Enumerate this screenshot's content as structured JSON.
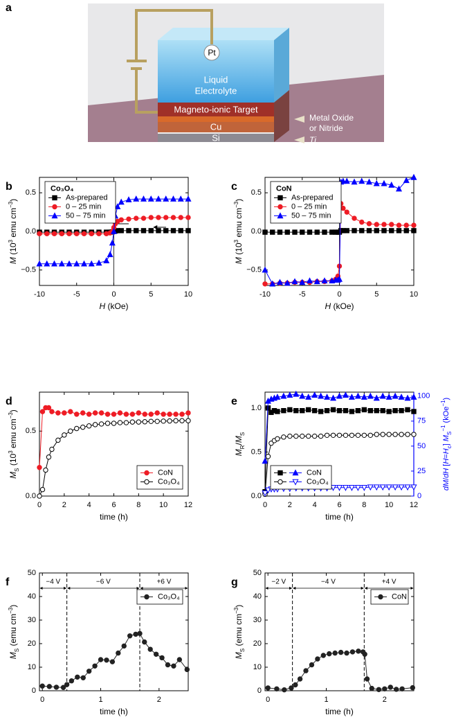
{
  "diagram": {
    "panel": "a",
    "pt": "Pt",
    "electrolyte": [
      "Liquid",
      "Electrolyte"
    ],
    "target": "Magneto-ionic Target",
    "cu": "Cu",
    "si": "Si",
    "oxide": [
      "Metal Oxide",
      "or Nitride"
    ],
    "ti": "Ti"
  },
  "chart_data": [
    {
      "type": "line",
      "panel": "b",
      "legend_title": "Co₃O₄",
      "legend": "upper left",
      "zeroline": true,
      "xlabel": [
        [
          "H",
          "i"
        ],
        [
          " (kOe)"
        ]
      ],
      "ylabel": [
        [
          "M",
          "i"
        ],
        [
          " (10"
        ],
        [
          "3",
          "sup"
        ],
        [
          " emu cm"
        ],
        [
          "−3",
          "sup"
        ],
        [
          ")"
        ]
      ],
      "xlim": [
        -10,
        10
      ],
      "xticks": [
        -10,
        -5,
        0,
        5,
        10
      ],
      "ylim": [
        -0.7,
        0.7
      ],
      "yticks": [
        {
          "value": -0.5,
          "label": "−0.5"
        },
        {
          "value": 0,
          "label": "0.0"
        },
        {
          "value": 0.5,
          "label": "0.5"
        }
      ],
      "x": [
        -10,
        -9,
        -8,
        -7,
        -6,
        -5,
        -4,
        -3,
        -2,
        -1,
        -0.5,
        -0.2,
        0,
        0.2,
        0.5,
        1,
        2,
        3,
        4,
        5,
        6,
        7,
        8,
        9,
        10
      ],
      "series": [
        {
          "name": "As-prepared",
          "color": "#000000",
          "marker": "square",
          "filled": true,
          "values": [
            -0.01,
            -0.01,
            -0.01,
            -0.01,
            -0.01,
            -0.01,
            -0.01,
            -0.01,
            -0.01,
            -0.01,
            -0.01,
            -0.005,
            0,
            0.005,
            0.01,
            0.01,
            0.01,
            0.01,
            0.01,
            0.01,
            0.01,
            0.01,
            0.01,
            0.01,
            0.01
          ]
        },
        {
          "name": "0 – 25 min",
          "color": "#ee1c25",
          "marker": "circle",
          "filled": true,
          "values": [
            -0.03,
            -0.03,
            -0.03,
            -0.03,
            -0.03,
            -0.03,
            -0.03,
            -0.03,
            -0.03,
            -0.03,
            -0.02,
            0,
            0.05,
            0.1,
            0.13,
            0.15,
            0.16,
            0.17,
            0.17,
            0.18,
            0.18,
            0.18,
            0.18,
            0.18,
            0.18
          ]
        },
        {
          "name": "50 – 75 min",
          "color": "#0000ff",
          "marker": "triangle",
          "filled": true,
          "values": [
            -0.42,
            -0.42,
            -0.42,
            -0.42,
            -0.42,
            -0.42,
            -0.42,
            -0.42,
            -0.41,
            -0.38,
            -0.3,
            -0.15,
            0,
            0.2,
            0.32,
            0.38,
            0.41,
            0.42,
            0.42,
            0.42,
            0.42,
            0.42,
            0.42,
            0.42,
            0.42
          ]
        }
      ]
    },
    {
      "type": "line",
      "panel": "c",
      "legend_title": "CoN",
      "legend": "upper left",
      "zeroline": true,
      "xlabel": [
        [
          "H",
          "i"
        ],
        [
          " (kOe)"
        ]
      ],
      "ylabel": [
        [
          "M",
          "i"
        ],
        [
          " (10"
        ],
        [
          "3",
          "sup"
        ],
        [
          " emu cm"
        ],
        [
          "−3",
          "sup"
        ],
        [
          ")"
        ]
      ],
      "xlim": [
        -10,
        10
      ],
      "xticks": [
        -10,
        -5,
        0,
        5,
        10
      ],
      "ylim": [
        -0.7,
        0.7
      ],
      "yticks": [
        {
          "value": -0.5,
          "label": "−0.5"
        },
        {
          "value": 0,
          "label": "0.0"
        },
        {
          "value": 0.5,
          "label": "0.5"
        }
      ],
      "x": [
        -10,
        -9,
        -8,
        -7,
        -6,
        -5,
        -4,
        -3,
        -2,
        -1,
        -0.5,
        -0.2,
        0,
        0.2,
        0.5,
        1,
        2,
        3,
        4,
        5,
        6,
        7,
        8,
        9,
        10
      ],
      "series": [
        {
          "name": "As-prepared",
          "color": "#000000",
          "marker": "square",
          "filled": true,
          "values": [
            -0.01,
            -0.01,
            -0.01,
            -0.01,
            -0.01,
            -0.01,
            -0.01,
            -0.01,
            -0.01,
            -0.01,
            -0.01,
            -0.01,
            -0.01,
            0.01,
            0.01,
            0.01,
            0.01,
            0.01,
            0.01,
            0.01,
            0.01,
            0.01,
            0.01,
            0.01,
            0.01
          ]
        },
        {
          "name": "0 – 25 min",
          "color": "#ee1c25",
          "marker": "circle",
          "filled": true,
          "values": [
            -0.68,
            -0.68,
            -0.67,
            -0.67,
            -0.66,
            -0.66,
            -0.66,
            -0.65,
            -0.65,
            -0.64,
            -0.62,
            -0.58,
            -0.45,
            0.36,
            0.3,
            0.25,
            0.17,
            0.12,
            0.1,
            0.09,
            0.09,
            0.09,
            0.08,
            0.08,
            0.08
          ]
        },
        {
          "name": "50 – 75 min",
          "color": "#0000ff",
          "marker": "triangle",
          "filled": true,
          "values": [
            -0.5,
            -0.68,
            -0.66,
            -0.67,
            -0.65,
            -0.66,
            -0.64,
            -0.65,
            -0.64,
            -0.64,
            -0.63,
            -0.63,
            -0.62,
            0.64,
            0.65,
            0.65,
            0.64,
            0.65,
            0.64,
            0.62,
            0.62,
            0.6,
            0.55,
            0.66,
            0.7
          ]
        }
      ]
    },
    {
      "type": "line",
      "panel": "d",
      "legend": "lower right",
      "xlabel": [
        [
          "time (h)"
        ]
      ],
      "ylabel": [
        [
          "M",
          "i"
        ],
        [
          "S",
          "sub"
        ],
        [
          " (10"
        ],
        [
          "3",
          "sup"
        ],
        [
          " emu cm"
        ],
        [
          "−3",
          "sup"
        ],
        [
          ")"
        ]
      ],
      "xlim": [
        0,
        12
      ],
      "xticks": [
        0,
        2,
        4,
        6,
        8,
        10,
        12
      ],
      "ylim": [
        0,
        0.8
      ],
      "yticks": [
        {
          "value": 0,
          "label": "0.0"
        },
        0.5
      ],
      "x": [
        0,
        0.25,
        0.5,
        0.75,
        1,
        1.5,
        2,
        2.5,
        3,
        3.5,
        4,
        4.5,
        5,
        5.5,
        6,
        6.5,
        7,
        7.5,
        8,
        8.5,
        9,
        9.5,
        10,
        10.5,
        11,
        11.5,
        12
      ],
      "series": [
        {
          "name": "CoN",
          "color": "#ee1c25",
          "marker": "circle",
          "filled": true,
          "values": [
            0.22,
            0.65,
            0.68,
            0.68,
            0.65,
            0.64,
            0.64,
            0.65,
            0.63,
            0.64,
            0.63,
            0.64,
            0.64,
            0.63,
            0.63,
            0.64,
            0.63,
            0.63,
            0.64,
            0.63,
            0.63,
            0.64,
            0.63,
            0.63,
            0.63,
            0.63,
            0.64
          ]
        },
        {
          "name": "Co₃O₄",
          "color": "#000000",
          "marker": "circle",
          "filled": false,
          "values": [
            0,
            0.05,
            0.2,
            0.3,
            0.36,
            0.43,
            0.47,
            0.5,
            0.52,
            0.53,
            0.54,
            0.55,
            0.555,
            0.56,
            0.56,
            0.565,
            0.565,
            0.57,
            0.57,
            0.572,
            0.575,
            0.575,
            0.577,
            0.578,
            0.58,
            0.58,
            0.58
          ]
        }
      ]
    },
    {
      "type": "line",
      "panel": "e",
      "legend": "lower left",
      "xlabel": [
        [
          "time (h)"
        ]
      ],
      "ylabel": [
        [
          "M",
          "i"
        ],
        [
          "R",
          "sub"
        ],
        [
          "/"
        ],
        [
          "M",
          "i"
        ],
        [
          "S",
          "sub"
        ]
      ],
      "y2label": [
        [
          "dM",
          "i"
        ],
        [
          "/"
        ],
        [
          "dH",
          "i"
        ],
        [
          " ["
        ],
        [
          "H",
          "i"
        ],
        [
          "="
        ],
        [
          "H",
          "i"
        ],
        [
          "c",
          "sub"
        ],
        [
          "] "
        ],
        [
          "M",
          "i"
        ],
        [
          "S",
          "sub"
        ],
        [
          "−1",
          "sup"
        ],
        [
          " (kOe"
        ],
        [
          "−1",
          "sup"
        ],
        [
          ")"
        ]
      ],
      "y2color": "#0000ff",
      "xlim": [
        0,
        12
      ],
      "xticks": [
        0,
        2,
        4,
        6,
        8,
        10,
        12
      ],
      "ylim": [
        0,
        1.18
      ],
      "yticks": [
        {
          "value": 0,
          "label": "0.0"
        },
        0.5,
        {
          "value": 1,
          "label": "1.0"
        }
      ],
      "y2lim": [
        0,
        104
      ],
      "y2ticks": [
        0,
        25,
        50,
        75,
        100
      ],
      "x": [
        0,
        0.25,
        0.5,
        0.75,
        1,
        1.5,
        2,
        2.5,
        3,
        3.5,
        4,
        4.5,
        5,
        5.5,
        6,
        6.5,
        7,
        7.5,
        8,
        8.5,
        9,
        9.5,
        10,
        10.5,
        11,
        11.5,
        12
      ],
      "series": [
        {
          "name": "CoN",
          "color": "#000000",
          "marker": "square",
          "filled": true,
          "values": [
            0.05,
            1.0,
            0.95,
            0.97,
            0.96,
            0.97,
            0.98,
            0.97,
            0.97,
            0.98,
            0.97,
            0.96,
            0.97,
            0.98,
            0.97,
            0.97,
            0.96,
            0.97,
            0.98,
            0.97,
            0.97,
            0.97,
            0.96,
            0.97,
            0.97,
            0.98,
            0.96
          ]
        },
        {
          "name": "CoN",
          "color": "#0000ff",
          "marker": "triangle",
          "filled": true,
          "axis": "y2",
          "values": [
            35,
            95,
            97,
            98,
            99,
            100,
            101,
            102,
            100,
            99,
            101,
            100,
            99,
            98,
            100,
            101,
            99,
            100,
            99,
            100,
            98,
            100,
            99,
            100,
            99,
            98,
            99
          ]
        },
        {
          "name": "Co₃O₄",
          "color": "#000000",
          "marker": "circle",
          "filled": false,
          "values": [
            0.02,
            0.45,
            0.6,
            0.63,
            0.65,
            0.67,
            0.68,
            0.68,
            0.68,
            0.68,
            0.68,
            0.68,
            0.69,
            0.69,
            0.69,
            0.69,
            0.69,
            0.69,
            0.69,
            0.69,
            0.7,
            0.7,
            0.7,
            0.7,
            0.7,
            0.7,
            0.7
          ]
        },
        {
          "name": "Co₃O₄",
          "color": "#0000ff",
          "marker": "triangle-down",
          "filled": false,
          "axis": "y2",
          "values": [
            3,
            6,
            7,
            7,
            7,
            7.5,
            7.5,
            8,
            8,
            8,
            8,
            8,
            8,
            8.5,
            8.5,
            8.5,
            8.5,
            8.5,
            8.5,
            9,
            9,
            9,
            9,
            9,
            9,
            9,
            9
          ]
        }
      ]
    },
    {
      "type": "line",
      "panel": "f",
      "legend": "upper right",
      "xlabel": [
        [
          "time (h)"
        ]
      ],
      "ylabel": [
        [
          "M",
          "i"
        ],
        [
          "S",
          "sub"
        ],
        [
          " (emu cm"
        ],
        [
          "−3",
          "sup"
        ],
        [
          ")"
        ]
      ],
      "xlim": [
        -0.05,
        2.5
      ],
      "xticks": [
        0,
        1,
        2
      ],
      "ylim": [
        0,
        50
      ],
      "yticks": [
        0,
        10,
        20,
        30,
        40,
        50
      ],
      "boundaries": [
        0.42,
        1.67
      ],
      "regions": [
        "−4 V",
        "−6 V",
        "+6 V"
      ],
      "x": [
        0,
        0.12,
        0.24,
        0.36,
        0.42,
        0.5,
        0.6,
        0.7,
        0.8,
        0.9,
        1.0,
        1.1,
        1.2,
        1.3,
        1.4,
        1.5,
        1.6,
        1.67,
        1.75,
        1.85,
        1.95,
        2.05,
        2.15,
        2.25,
        2.35,
        2.48
      ],
      "series": [
        {
          "name": "Co₃O₄",
          "color": "#222222",
          "marker": "circle",
          "filled": true,
          "values": [
            2,
            1.8,
            1.5,
            1.4,
            2.6,
            4.2,
            5.8,
            5.5,
            8.3,
            10.5,
            13.2,
            13,
            12.3,
            16,
            19,
            23.3,
            24,
            24.3,
            20.7,
            17.6,
            15.5,
            14,
            11,
            10.5,
            13.2,
            9
          ]
        }
      ]
    },
    {
      "type": "line",
      "panel": "g",
      "legend": "upper right",
      "xlabel": [
        [
          "time (h)"
        ]
      ],
      "ylabel": [
        [
          "M",
          "i"
        ],
        [
          "S",
          "sub"
        ],
        [
          " (emu cm"
        ],
        [
          "−3",
          "sup"
        ],
        [
          ")"
        ]
      ],
      "xlim": [
        -0.05,
        2.5
      ],
      "xticks": [
        0,
        1,
        2
      ],
      "ylim": [
        0,
        50
      ],
      "yticks": [
        0,
        10,
        20,
        30,
        40,
        50
      ],
      "boundaries": [
        0.42,
        1.65
      ],
      "regions": [
        "−2 V",
        "−4 V",
        "+4 V"
      ],
      "x": [
        0,
        0.15,
        0.28,
        0.4,
        0.47,
        0.55,
        0.65,
        0.75,
        0.85,
        0.95,
        1.05,
        1.15,
        1.25,
        1.35,
        1.45,
        1.55,
        1.63,
        1.66,
        1.7,
        1.78,
        1.9,
        2.0,
        2.1,
        2.2,
        2.3,
        2.48
      ],
      "series": [
        {
          "name": "CoN",
          "color": "#222222",
          "marker": "circle",
          "filled": true,
          "values": [
            1.2,
            0.8,
            0.4,
            1.2,
            2.5,
            5,
            8.5,
            11,
            13.5,
            15,
            15.7,
            16,
            16.3,
            16,
            16.5,
            16.8,
            16.5,
            15.5,
            5,
            1,
            0.5,
            0.8,
            1.5,
            0.6,
            0.8,
            1.3
          ]
        }
      ]
    }
  ]
}
